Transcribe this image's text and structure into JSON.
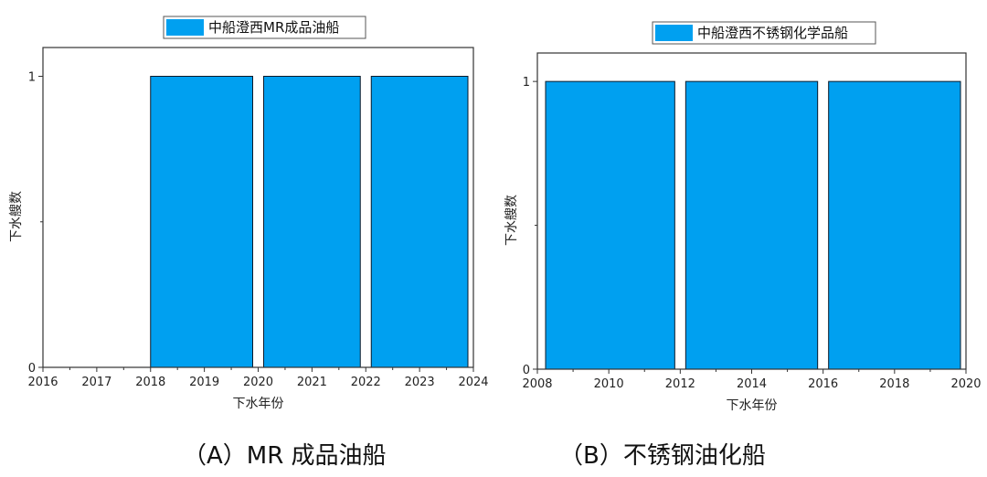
{
  "chart_data": [
    {
      "type": "bar",
      "legend": "中船澄西MR成品油船",
      "bar_color": "#00A0F0",
      "xlabel": "下水年份",
      "ylabel": "下水艘数",
      "xlim": [
        2016,
        2024
      ],
      "ylim": [
        0,
        1
      ],
      "xticks": [
        "2016",
        "2017",
        "2018",
        "2019",
        "2020",
        "2021",
        "2022",
        "2023",
        "2024"
      ],
      "yticks": [
        "0",
        "1"
      ],
      "bars": [
        {
          "from": 2018,
          "to": 2020,
          "value": 1
        },
        {
          "from": 2020,
          "to": 2022,
          "value": 1
        },
        {
          "from": 2022,
          "to": 2024,
          "value": 1
        }
      ],
      "caption": "（A）MR 成品油船"
    },
    {
      "type": "bar",
      "legend": "中船澄西不锈钢化学品船",
      "bar_color": "#00A0F0",
      "xlabel": "下水年份",
      "ylabel": "下水艘数",
      "xlim": [
        2008,
        2020
      ],
      "ylim": [
        0,
        1
      ],
      "xticks": [
        "2008",
        "2010",
        "2012",
        "2014",
        "2016",
        "2018",
        "2020"
      ],
      "yticks": [
        "0",
        "1"
      ],
      "bars": [
        {
          "from": 2008,
          "to": 2012,
          "value": 1
        },
        {
          "from": 2012,
          "to": 2016,
          "value": 1
        },
        {
          "from": 2016,
          "to": 2020,
          "value": 1
        }
      ],
      "caption": "（B）不锈钢油化船"
    }
  ]
}
